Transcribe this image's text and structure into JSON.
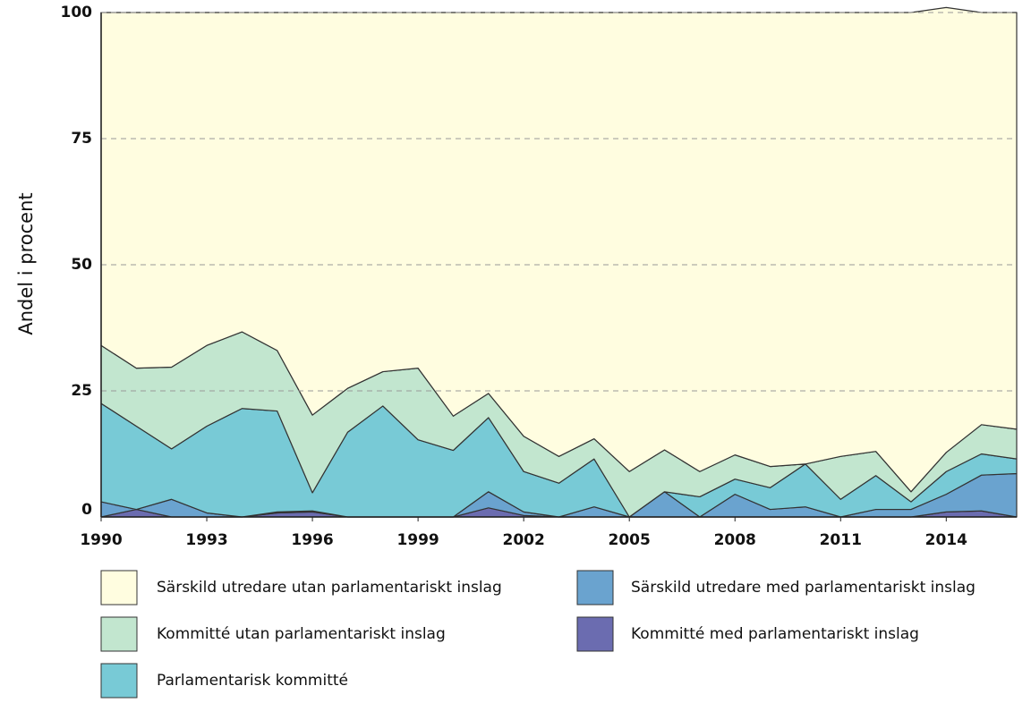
{
  "chart_data": {
    "type": "stacked-area",
    "y_label": "Andel i procent",
    "x": [
      1990,
      1991,
      1992,
      1993,
      1994,
      1995,
      1996,
      1997,
      1998,
      1999,
      2000,
      2001,
      2002,
      2003,
      2004,
      2005,
      2006,
      2007,
      2008,
      2009,
      2010,
      2011,
      2012,
      2013,
      2014,
      2015,
      2016
    ],
    "xlim": [
      1990,
      2016
    ],
    "xticks": [
      1990,
      1993,
      1996,
      1999,
      2002,
      2005,
      2008,
      2011,
      2014
    ],
    "ylim": [
      0,
      100
    ],
    "yticks": [
      0,
      25,
      50,
      75,
      100
    ],
    "grid": true,
    "series": [
      {
        "name": "Kommitté med parlamentariskt inslag",
        "color": "#6b6cb0",
        "values": [
          0,
          1.5,
          0,
          0,
          0,
          0.8,
          1,
          0,
          0,
          0,
          0,
          1.8,
          0.3,
          0,
          0,
          0,
          0,
          0,
          0,
          0,
          0,
          0,
          0,
          0,
          1,
          1.2,
          0
        ]
      },
      {
        "name": "Särskild utredare med parlamentariskt inslag",
        "color": "#6aa3cf",
        "values": [
          3,
          0,
          3.5,
          0.8,
          0,
          0.2,
          0.2,
          0,
          0,
          0,
          0,
          3.2,
          0.7,
          0,
          2,
          0,
          5,
          0,
          4.5,
          1.5,
          2,
          0,
          1.5,
          1.5,
          3.5,
          7.1,
          8.6
        ]
      },
      {
        "name": "Parlamentarisk kommitté",
        "color": "#78cad6",
        "values": [
          19.5,
          16.5,
          10,
          17.2,
          21.5,
          20,
          3.6,
          16.8,
          22,
          15.3,
          13.2,
          14.7,
          8,
          6.7,
          9.5,
          0,
          0,
          4,
          3,
          4.3,
          8.5,
          3.5,
          6.7,
          1.5,
          4.5,
          4.2,
          2.9
        ]
      },
      {
        "name": "Kommitté utan parlamentariskt inslag",
        "color": "#c2e6cf",
        "values": [
          11.5,
          11.5,
          16.2,
          16,
          15.2,
          12,
          15.4,
          8.7,
          6.8,
          14.2,
          6.8,
          4.8,
          7,
          5.3,
          4,
          9,
          8.3,
          5,
          4.8,
          4.2,
          0,
          8.5,
          4.8,
          2,
          3.8,
          5.8,
          5.9
        ]
      },
      {
        "name": "Särskild utredare utan parlamentariskt inslag",
        "color": "#fffde0",
        "values": [
          66,
          70.5,
          70.3,
          66,
          63.3,
          67,
          79.8,
          74.5,
          71.2,
          70.5,
          80,
          75.5,
          84,
          88,
          84.5,
          91,
          86.7,
          91,
          87.7,
          90,
          89.5,
          88,
          87,
          95,
          88.2,
          81.7,
          82.6
        ]
      }
    ]
  }
}
